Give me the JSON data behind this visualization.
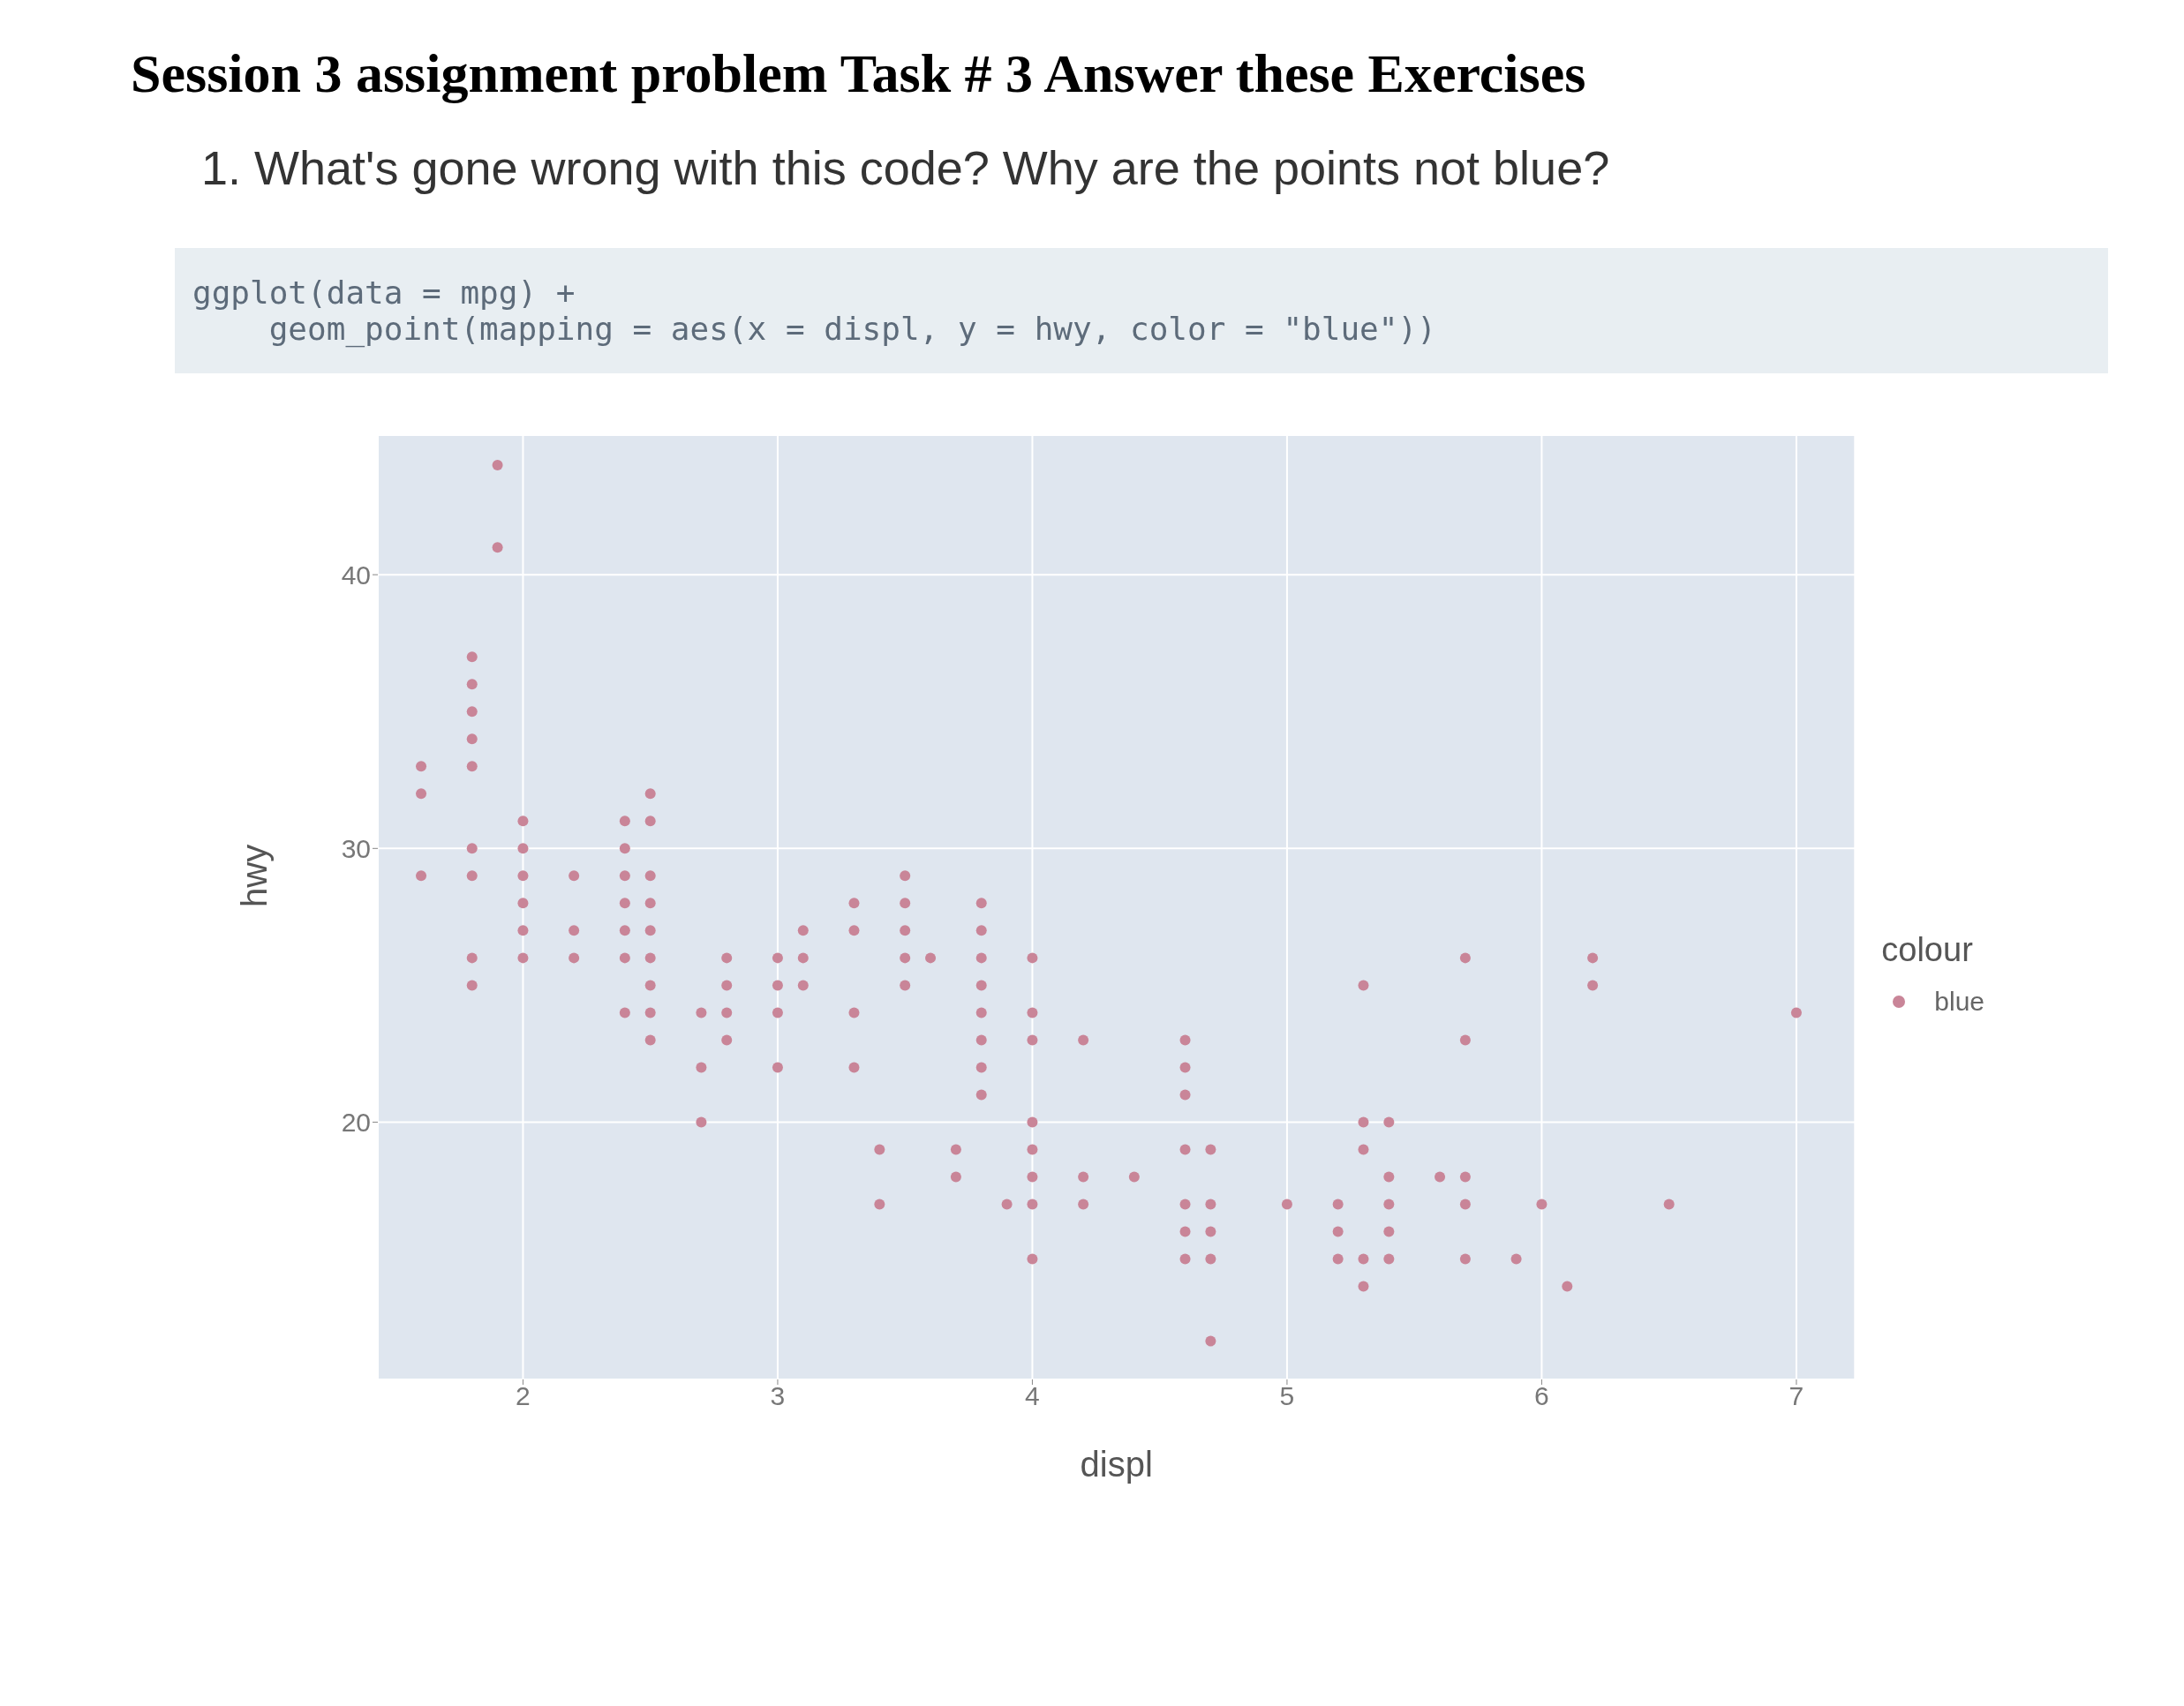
{
  "chart_data": {
    "type": "scatter",
    "title": "Session 3 assignment problem Task # 3 Answer these Exercises",
    "subtitle": "1. What's gone wrong with this code? Why are the points not blue?",
    "annotations": [
      "ggplot(data = mpg) +",
      "    geom_point(mapping = aes(x = displ, y = hwy, color = \"blue\"))"
    ],
    "xlabel": "displ",
    "ylabel": "hwy",
    "legend_title": "colour",
    "x": [
      1.6,
      1.6,
      1.6,
      1.8,
      1.8,
      1.8,
      1.8,
      1.8,
      1.8,
      1.8,
      1.8,
      1.8,
      1.9,
      1.9,
      2.0,
      2.0,
      2.0,
      2.0,
      2.0,
      2.0,
      2.2,
      2.2,
      2.2,
      2.4,
      2.4,
      2.4,
      2.4,
      2.4,
      2.4,
      2.4,
      2.5,
      2.5,
      2.5,
      2.5,
      2.5,
      2.5,
      2.5,
      2.5,
      2.5,
      2.7,
      2.7,
      2.7,
      2.8,
      2.8,
      2.8,
      2.8,
      3.0,
      3.0,
      3.0,
      3.0,
      3.1,
      3.1,
      3.1,
      3.3,
      3.3,
      3.3,
      3.3,
      3.4,
      3.4,
      3.5,
      3.5,
      3.5,
      3.5,
      3.5,
      3.6,
      3.7,
      3.7,
      3.8,
      3.8,
      3.8,
      3.8,
      3.8,
      3.8,
      3.8,
      3.8,
      3.9,
      4.0,
      4.0,
      4.0,
      4.0,
      4.0,
      4.0,
      4.0,
      4.0,
      4.2,
      4.2,
      4.2,
      4.4,
      4.6,
      4.6,
      4.6,
      4.6,
      4.6,
      4.6,
      4.6,
      4.7,
      4.7,
      4.7,
      4.7,
      4.7,
      5.0,
      5.2,
      5.2,
      5.2,
      5.3,
      5.3,
      5.3,
      5.3,
      5.3,
      5.4,
      5.4,
      5.4,
      5.4,
      5.4,
      5.6,
      5.7,
      5.7,
      5.7,
      5.7,
      5.7,
      5.9,
      6.0,
      6.1,
      6.2,
      6.2,
      6.5,
      7.0
    ],
    "series": [
      {
        "name": "blue",
        "color": "#c98598",
        "values": [
          33,
          32,
          29,
          37,
          36,
          35,
          34,
          33,
          30,
          29,
          26,
          25,
          44,
          41,
          31,
          30,
          29,
          28,
          27,
          26,
          29,
          27,
          26,
          31,
          30,
          29,
          28,
          27,
          26,
          24,
          32,
          31,
          29,
          28,
          27,
          26,
          25,
          24,
          23,
          24,
          22,
          20,
          26,
          25,
          24,
          23,
          26,
          25,
          24,
          22,
          27,
          26,
          25,
          28,
          27,
          24,
          22,
          19,
          17,
          29,
          28,
          27,
          26,
          25,
          26,
          19,
          18,
          28,
          27,
          26,
          25,
          24,
          23,
          22,
          21,
          17,
          26,
          24,
          23,
          20,
          19,
          18,
          17,
          15,
          23,
          18,
          17,
          18,
          23,
          22,
          21,
          19,
          17,
          16,
          15,
          19,
          17,
          16,
          15,
          12,
          17,
          17,
          16,
          15,
          25,
          20,
          19,
          15,
          14,
          20,
          18,
          17,
          16,
          15,
          18,
          26,
          23,
          18,
          17,
          15,
          15,
          17,
          14,
          26,
          25,
          17,
          24
        ]
      }
    ],
    "xlim": [
      1.43,
      7.23
    ],
    "ylim": [
      10.6,
      45.1
    ],
    "xticks": [
      2,
      3,
      4,
      5,
      6,
      7
    ],
    "yticks": [
      20,
      30,
      40
    ],
    "grid": true,
    "legend": "right",
    "marker": "circle"
  }
}
